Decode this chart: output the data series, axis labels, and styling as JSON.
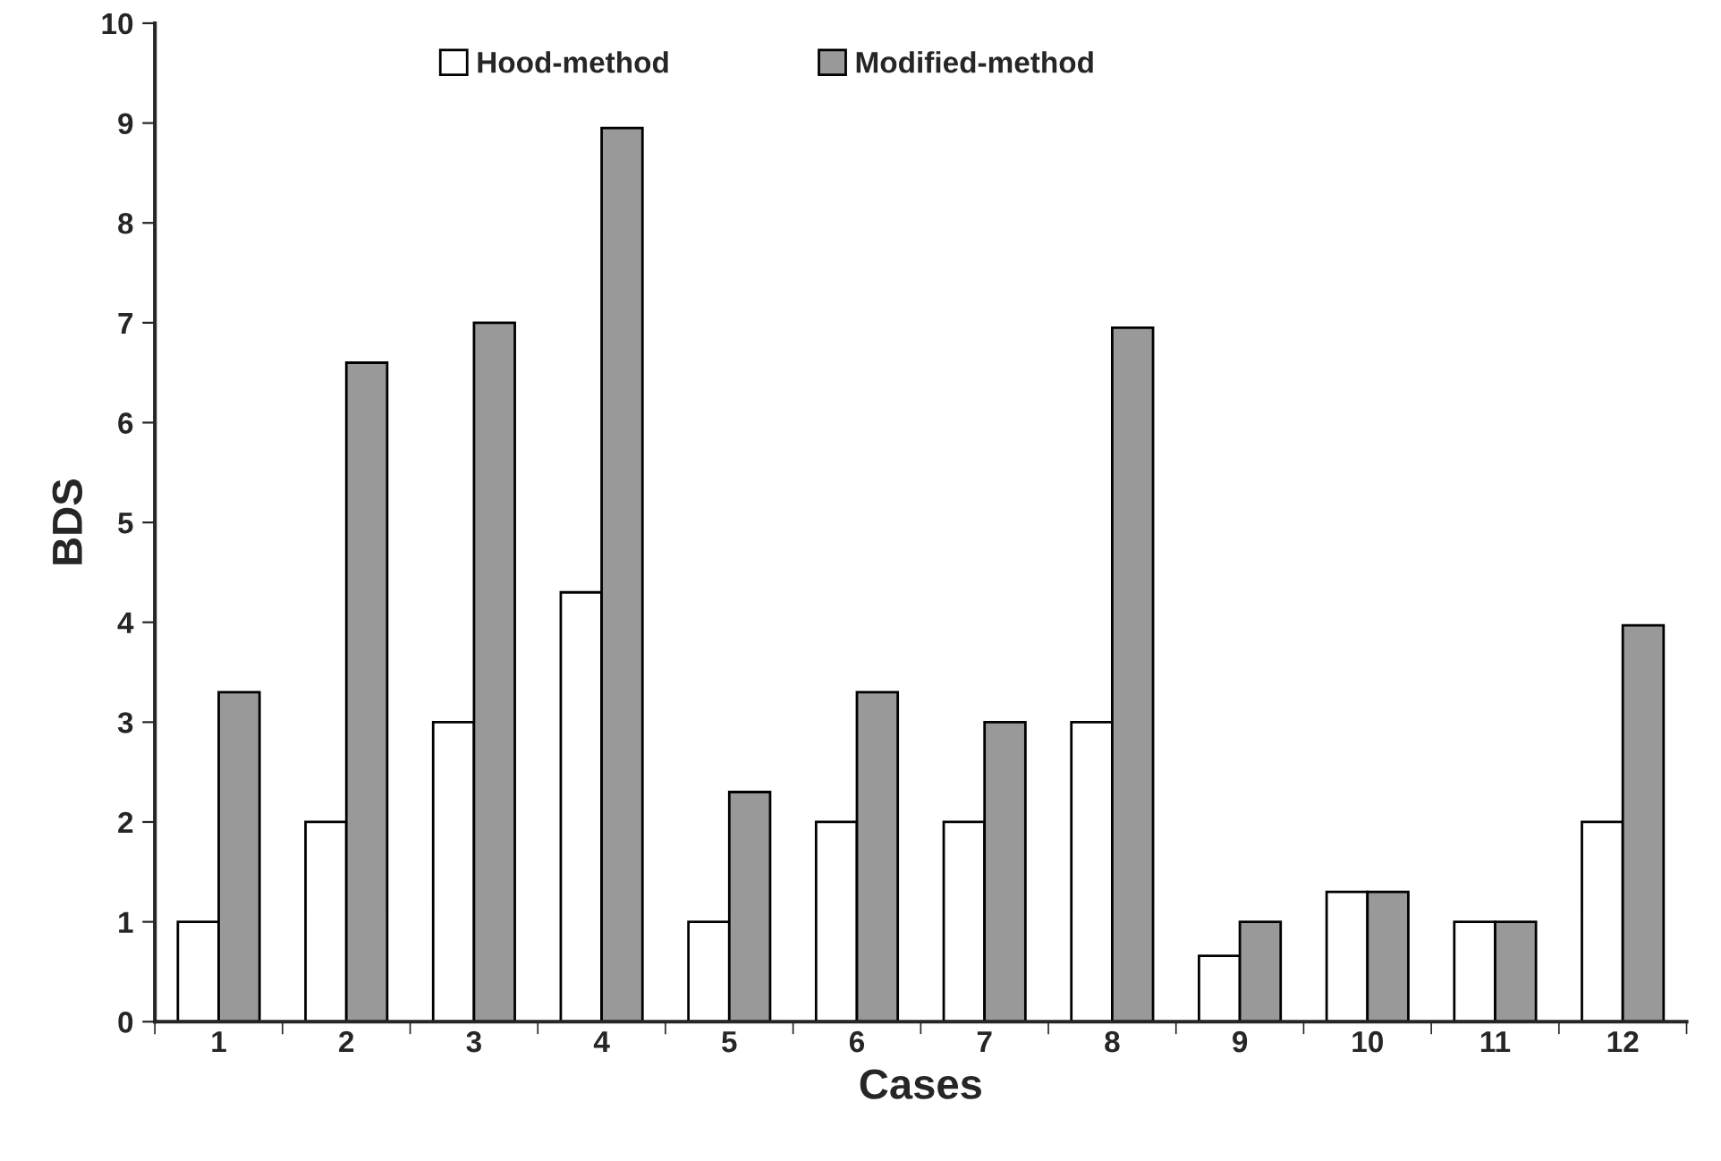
{
  "chart_data": {
    "type": "bar",
    "xlabel": "Cases",
    "ylabel": "BDS",
    "categories": [
      "1",
      "2",
      "3",
      "4",
      "5",
      "6",
      "7",
      "8",
      "9",
      "10",
      "11",
      "12"
    ],
    "series": [
      {
        "name": "Hood-method",
        "color": "#ffffff",
        "values": [
          1,
          2,
          3,
          4.3,
          1,
          2,
          2,
          3,
          0.66,
          1.3,
          1,
          2
        ]
      },
      {
        "name": "Modified-method",
        "color": "#999999",
        "values": [
          3.3,
          6.6,
          7,
          8.95,
          2.3,
          3.3,
          3,
          6.95,
          1,
          1.3,
          1,
          3.97
        ]
      }
    ],
    "ylim": [
      0,
      10
    ],
    "yticks": [
      0,
      1,
      2,
      3,
      4,
      5,
      6,
      7,
      8,
      9,
      10
    ],
    "grid": false,
    "legend": "top"
  }
}
